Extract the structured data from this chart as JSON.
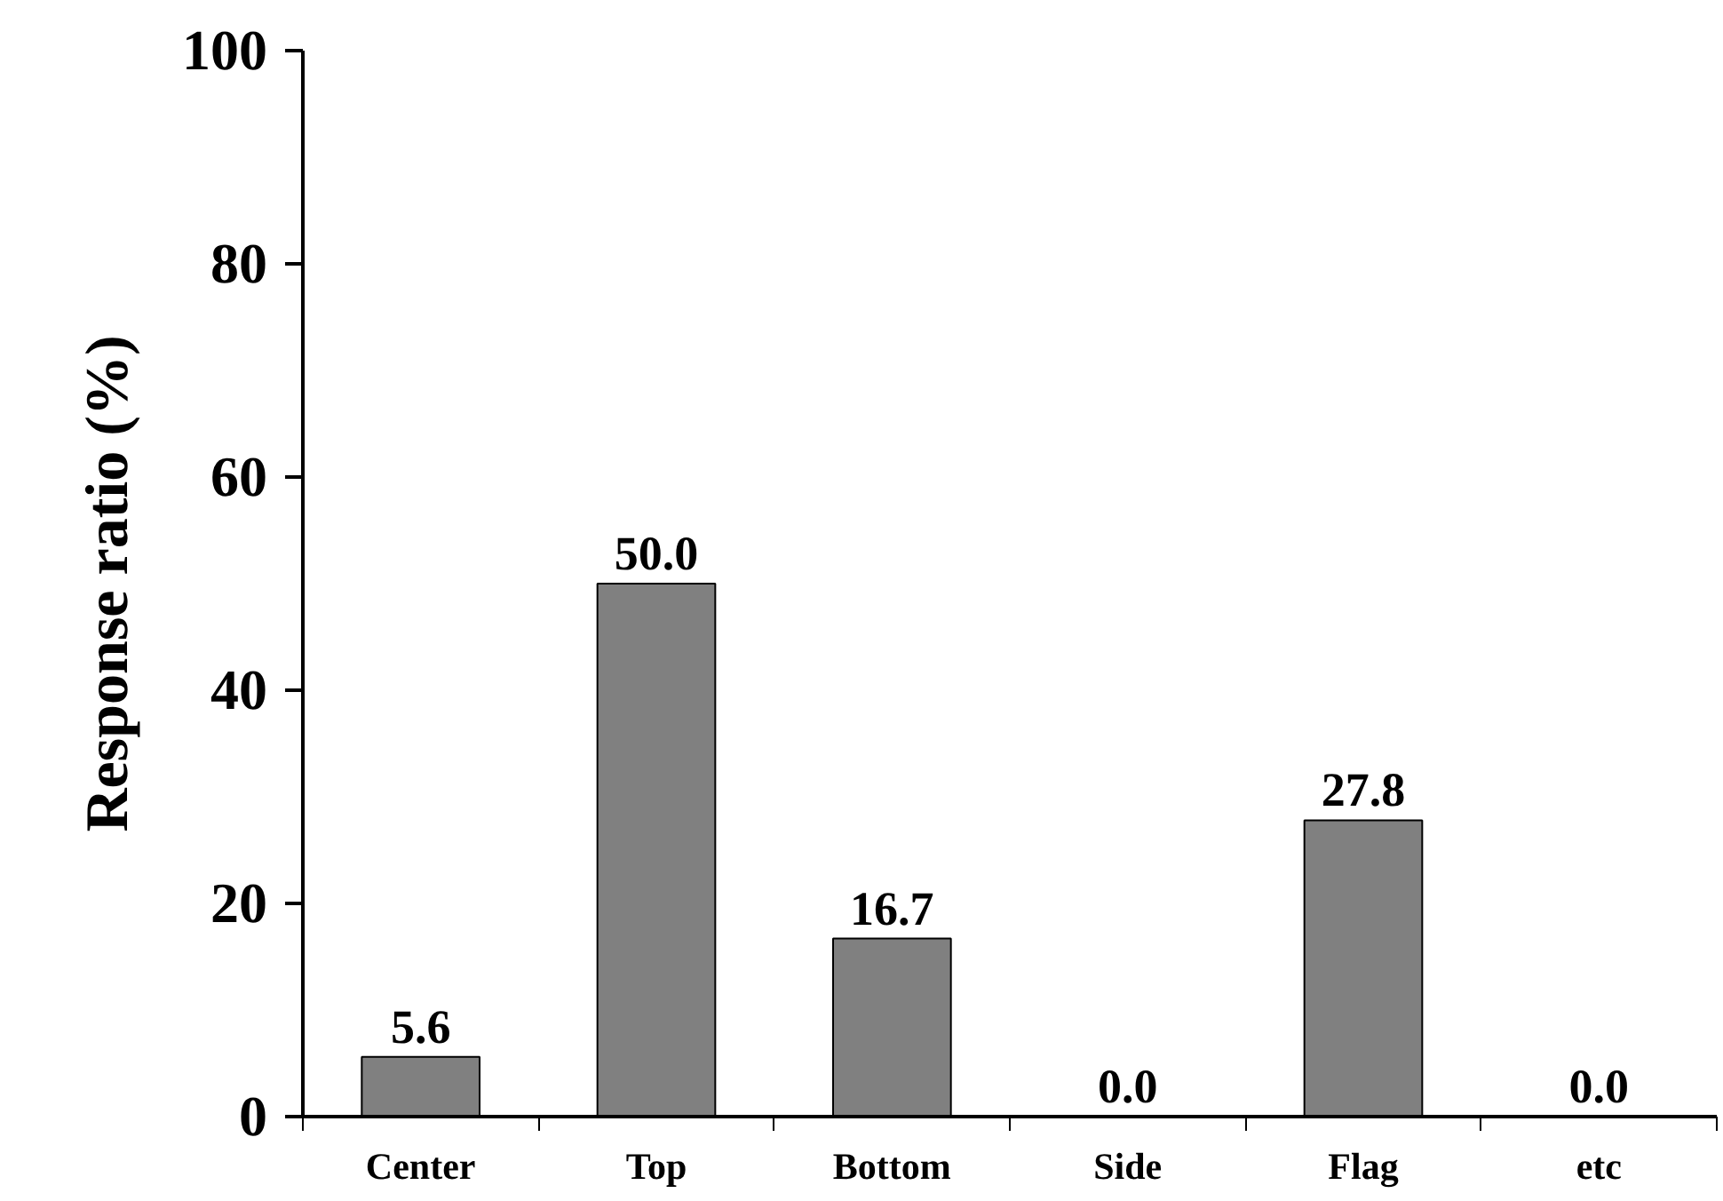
{
  "chart_data": {
    "type": "bar",
    "ylabel": "Response ratio (%)",
    "categories": [
      "Center",
      "Top",
      "Bottom",
      "Side",
      "Flag",
      "etc"
    ],
    "values": [
      5.6,
      50.0,
      16.7,
      0.0,
      27.8,
      0.0
    ],
    "value_labels": [
      "5.6",
      "50.0",
      "16.7",
      "0.0",
      "27.8",
      "0.0"
    ],
    "color": "#808080",
    "ylim": [
      0,
      100
    ],
    "yticks": [
      0,
      20,
      40,
      60,
      80,
      100
    ],
    "grid": false
  }
}
